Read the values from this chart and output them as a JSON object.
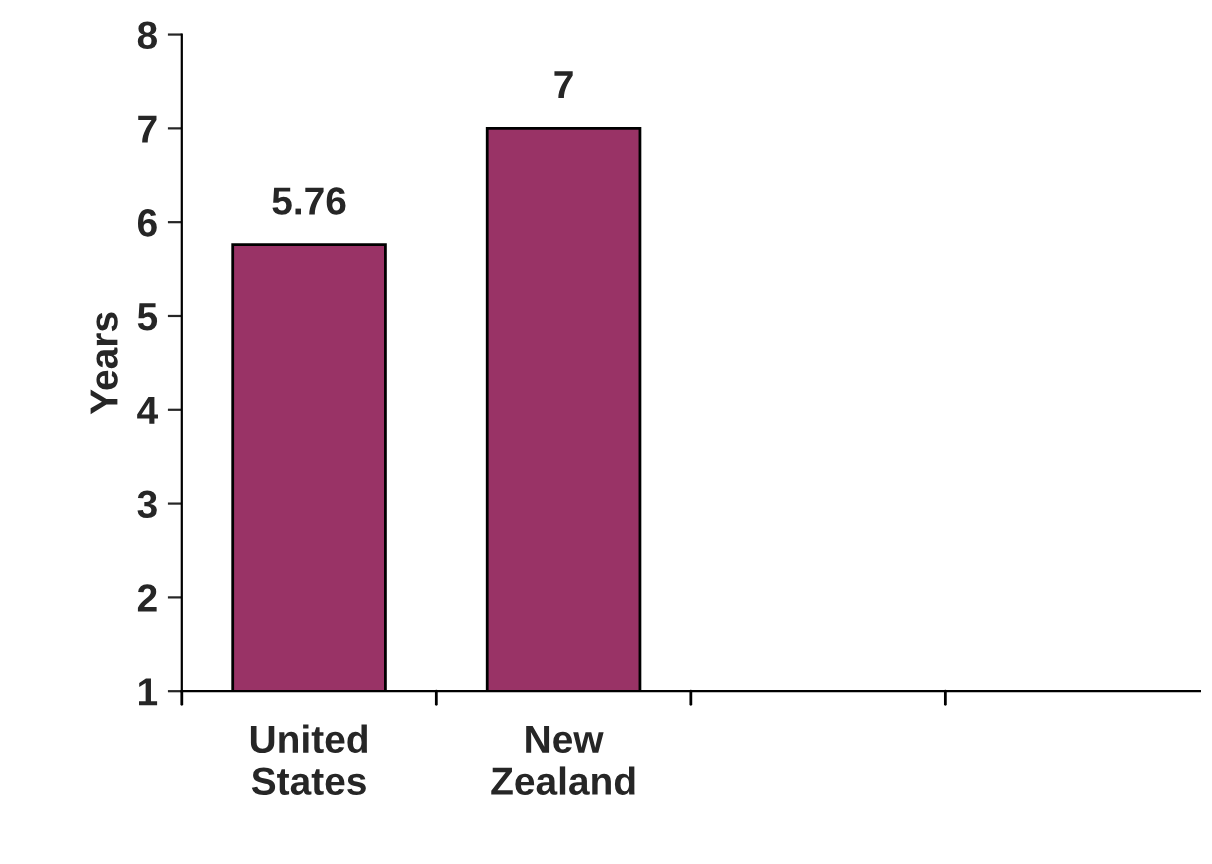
{
  "chart_data": {
    "type": "bar",
    "ylabel": "Years",
    "categories": [
      "United States",
      "New Zealand",
      null,
      null
    ],
    "values": [
      5.76,
      7,
      null,
      null
    ],
    "color": "#993366",
    "ylim": [
      1,
      8
    ],
    "yticks": [
      1,
      2,
      3,
      4,
      5,
      6,
      7,
      8
    ],
    "grid": false,
    "data_labels": true
  }
}
